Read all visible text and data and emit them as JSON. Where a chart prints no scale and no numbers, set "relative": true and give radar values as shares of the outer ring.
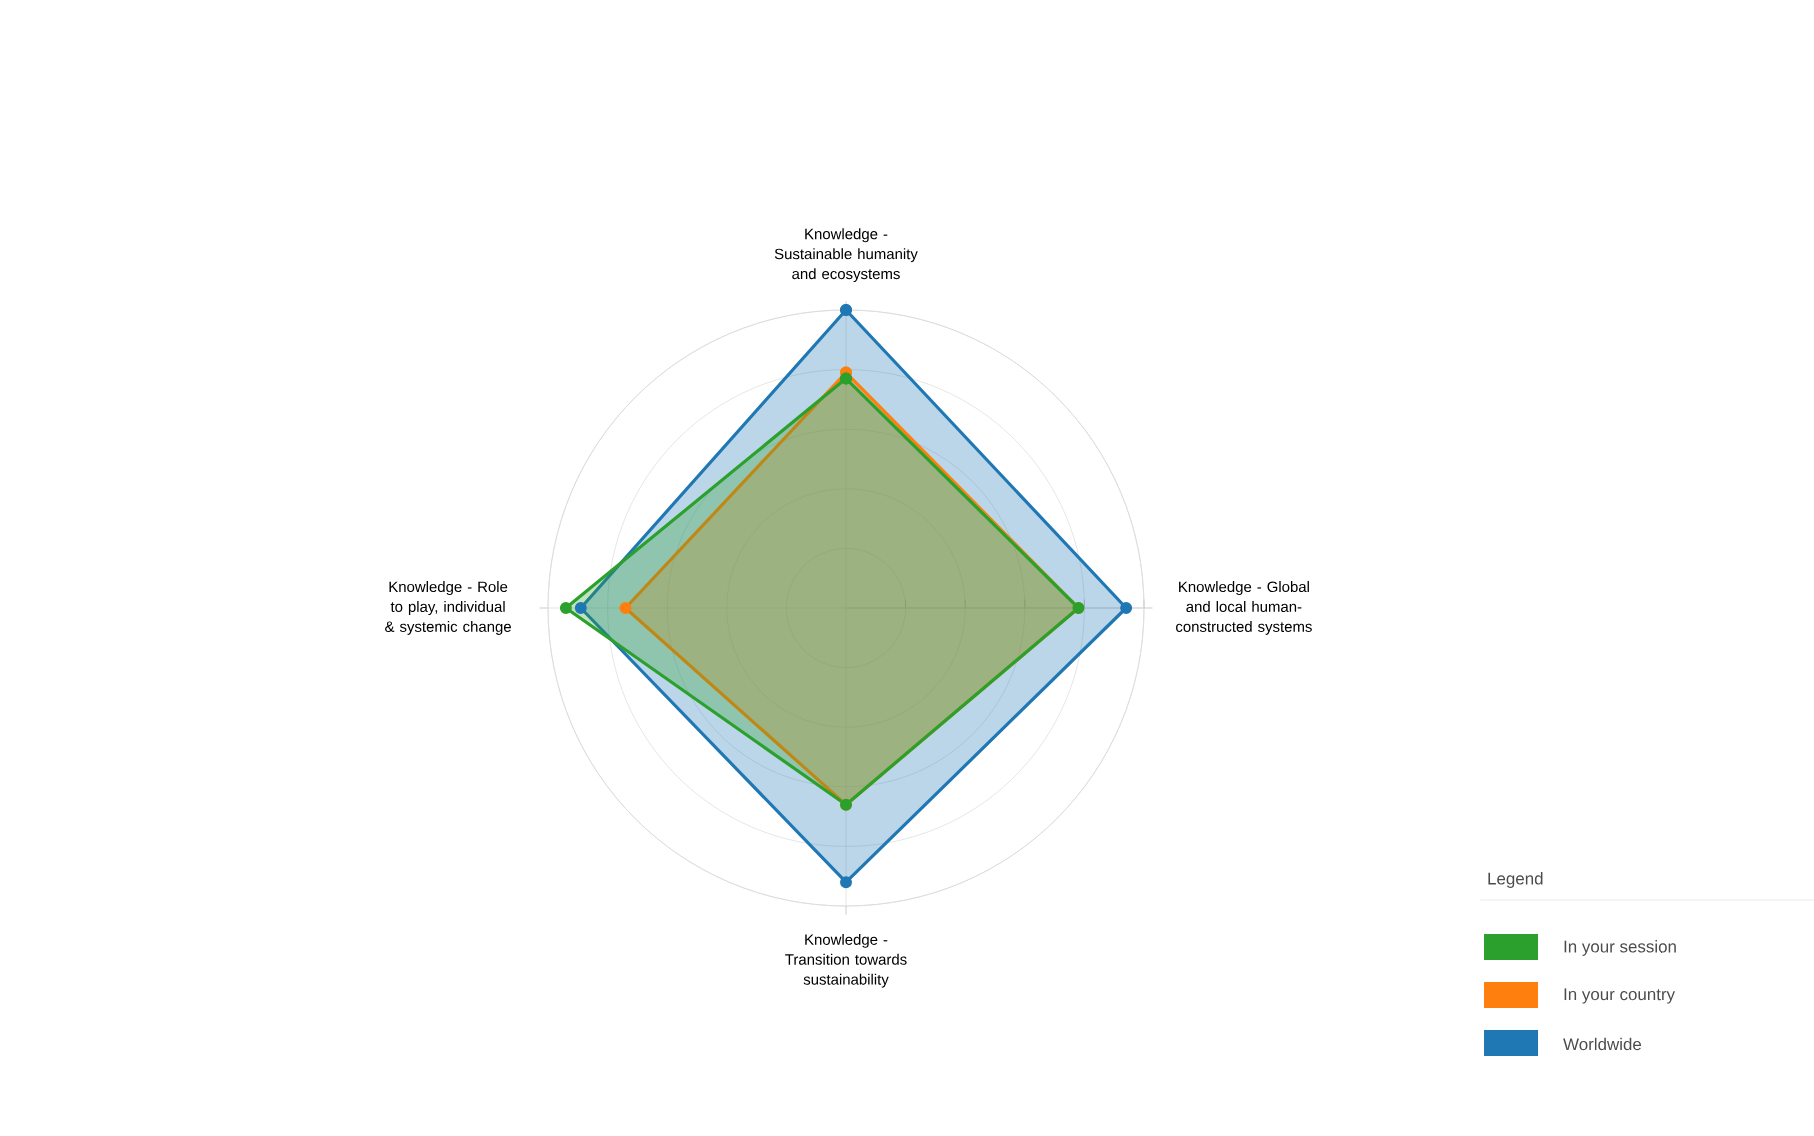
{
  "chart_data": {
    "type": "radar",
    "relative": true,
    "categories": [
      "Knowledge - Sustainable humanity and ecosystems",
      "Knowledge - Global and local human-constructed systems",
      "Knowledge - Transition towards sustainability",
      "Knowledge - Role to play, individual & systemic change"
    ],
    "series": [
      {
        "name": "In your session",
        "color": "#2ca02c",
        "values": [
          0.77,
          0.78,
          0.66,
          0.94
        ]
      },
      {
        "name": "In your country",
        "color": "#ff7f0e",
        "values": [
          0.79,
          0.78,
          0.66,
          0.74
        ]
      },
      {
        "name": "Worldwide",
        "color": "#1f77b4",
        "values": [
          1.0,
          0.94,
          0.92,
          0.89
        ]
      }
    ],
    "legend_title": "Legend",
    "legend": "bottom right",
    "grid": true,
    "marker": "circle"
  }
}
